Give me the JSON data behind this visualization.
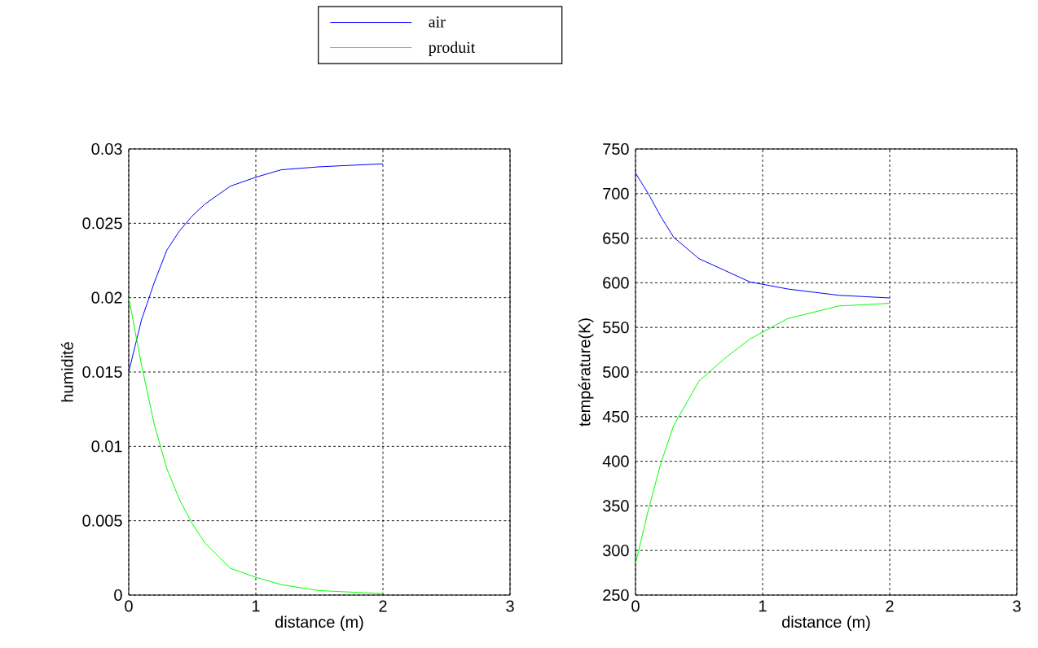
{
  "chart_data": [
    {
      "type": "line",
      "xlabel": "distance (m)",
      "ylabel": "humidité",
      "xlim": [
        0,
        3
      ],
      "ylim": [
        0,
        0.03
      ],
      "xticks": [
        0,
        1,
        2,
        3
      ],
      "yticks": [
        0,
        0.005,
        0.01,
        0.015,
        0.02,
        0.025,
        0.03
      ],
      "grid": true,
      "legend": "top right",
      "line_style": "solid",
      "marker": "none",
      "series": [
        {
          "name": "air",
          "color": "#0000ff",
          "x": [
            0,
            0.1,
            0.2,
            0.3,
            0.4,
            0.5,
            0.6,
            0.8,
            1,
            1.2,
            1.5,
            2
          ],
          "values": [
            0.015,
            0.0185,
            0.021,
            0.0232,
            0.0245,
            0.0255,
            0.0263,
            0.0275,
            0.0281,
            0.0286,
            0.0288,
            0.029
          ]
        },
        {
          "name": "produit",
          "color": "#00ff00",
          "x": [
            0,
            0.1,
            0.2,
            0.3,
            0.4,
            0.5,
            0.6,
            0.8,
            1,
            1.2,
            1.5,
            2
          ],
          "values": [
            0.02,
            0.0155,
            0.0115,
            0.0085,
            0.0064,
            0.0048,
            0.0035,
            0.0018,
            0.0012,
            0.0007,
            0.0003,
            0.0001
          ]
        }
      ]
    },
    {
      "type": "line",
      "xlabel": "distance (m)",
      "ylabel": "température(K)",
      "xlim": [
        0,
        3
      ],
      "ylim": [
        250,
        750
      ],
      "xticks": [
        0,
        1,
        2,
        3
      ],
      "yticks": [
        250,
        300,
        350,
        400,
        450,
        500,
        550,
        600,
        650,
        700,
        750
      ],
      "grid": true,
      "line_style": "solid",
      "marker": "none",
      "series": [
        {
          "color": "#0000ff",
          "x": [
            0,
            0.1,
            0.2,
            0.3,
            0.5,
            0.7,
            0.9,
            1.2,
            1.6,
            2
          ],
          "values": [
            723,
            700,
            674,
            651,
            627,
            614,
            601,
            593,
            586,
            583
          ]
        },
        {
          "color": "#00ff00",
          "x": [
            0,
            0.1,
            0.2,
            0.3,
            0.5,
            0.7,
            0.9,
            1.2,
            1.6,
            2
          ],
          "values": [
            285,
            345,
            398,
            440,
            490,
            515,
            537,
            560,
            574,
            577
          ]
        }
      ]
    }
  ]
}
